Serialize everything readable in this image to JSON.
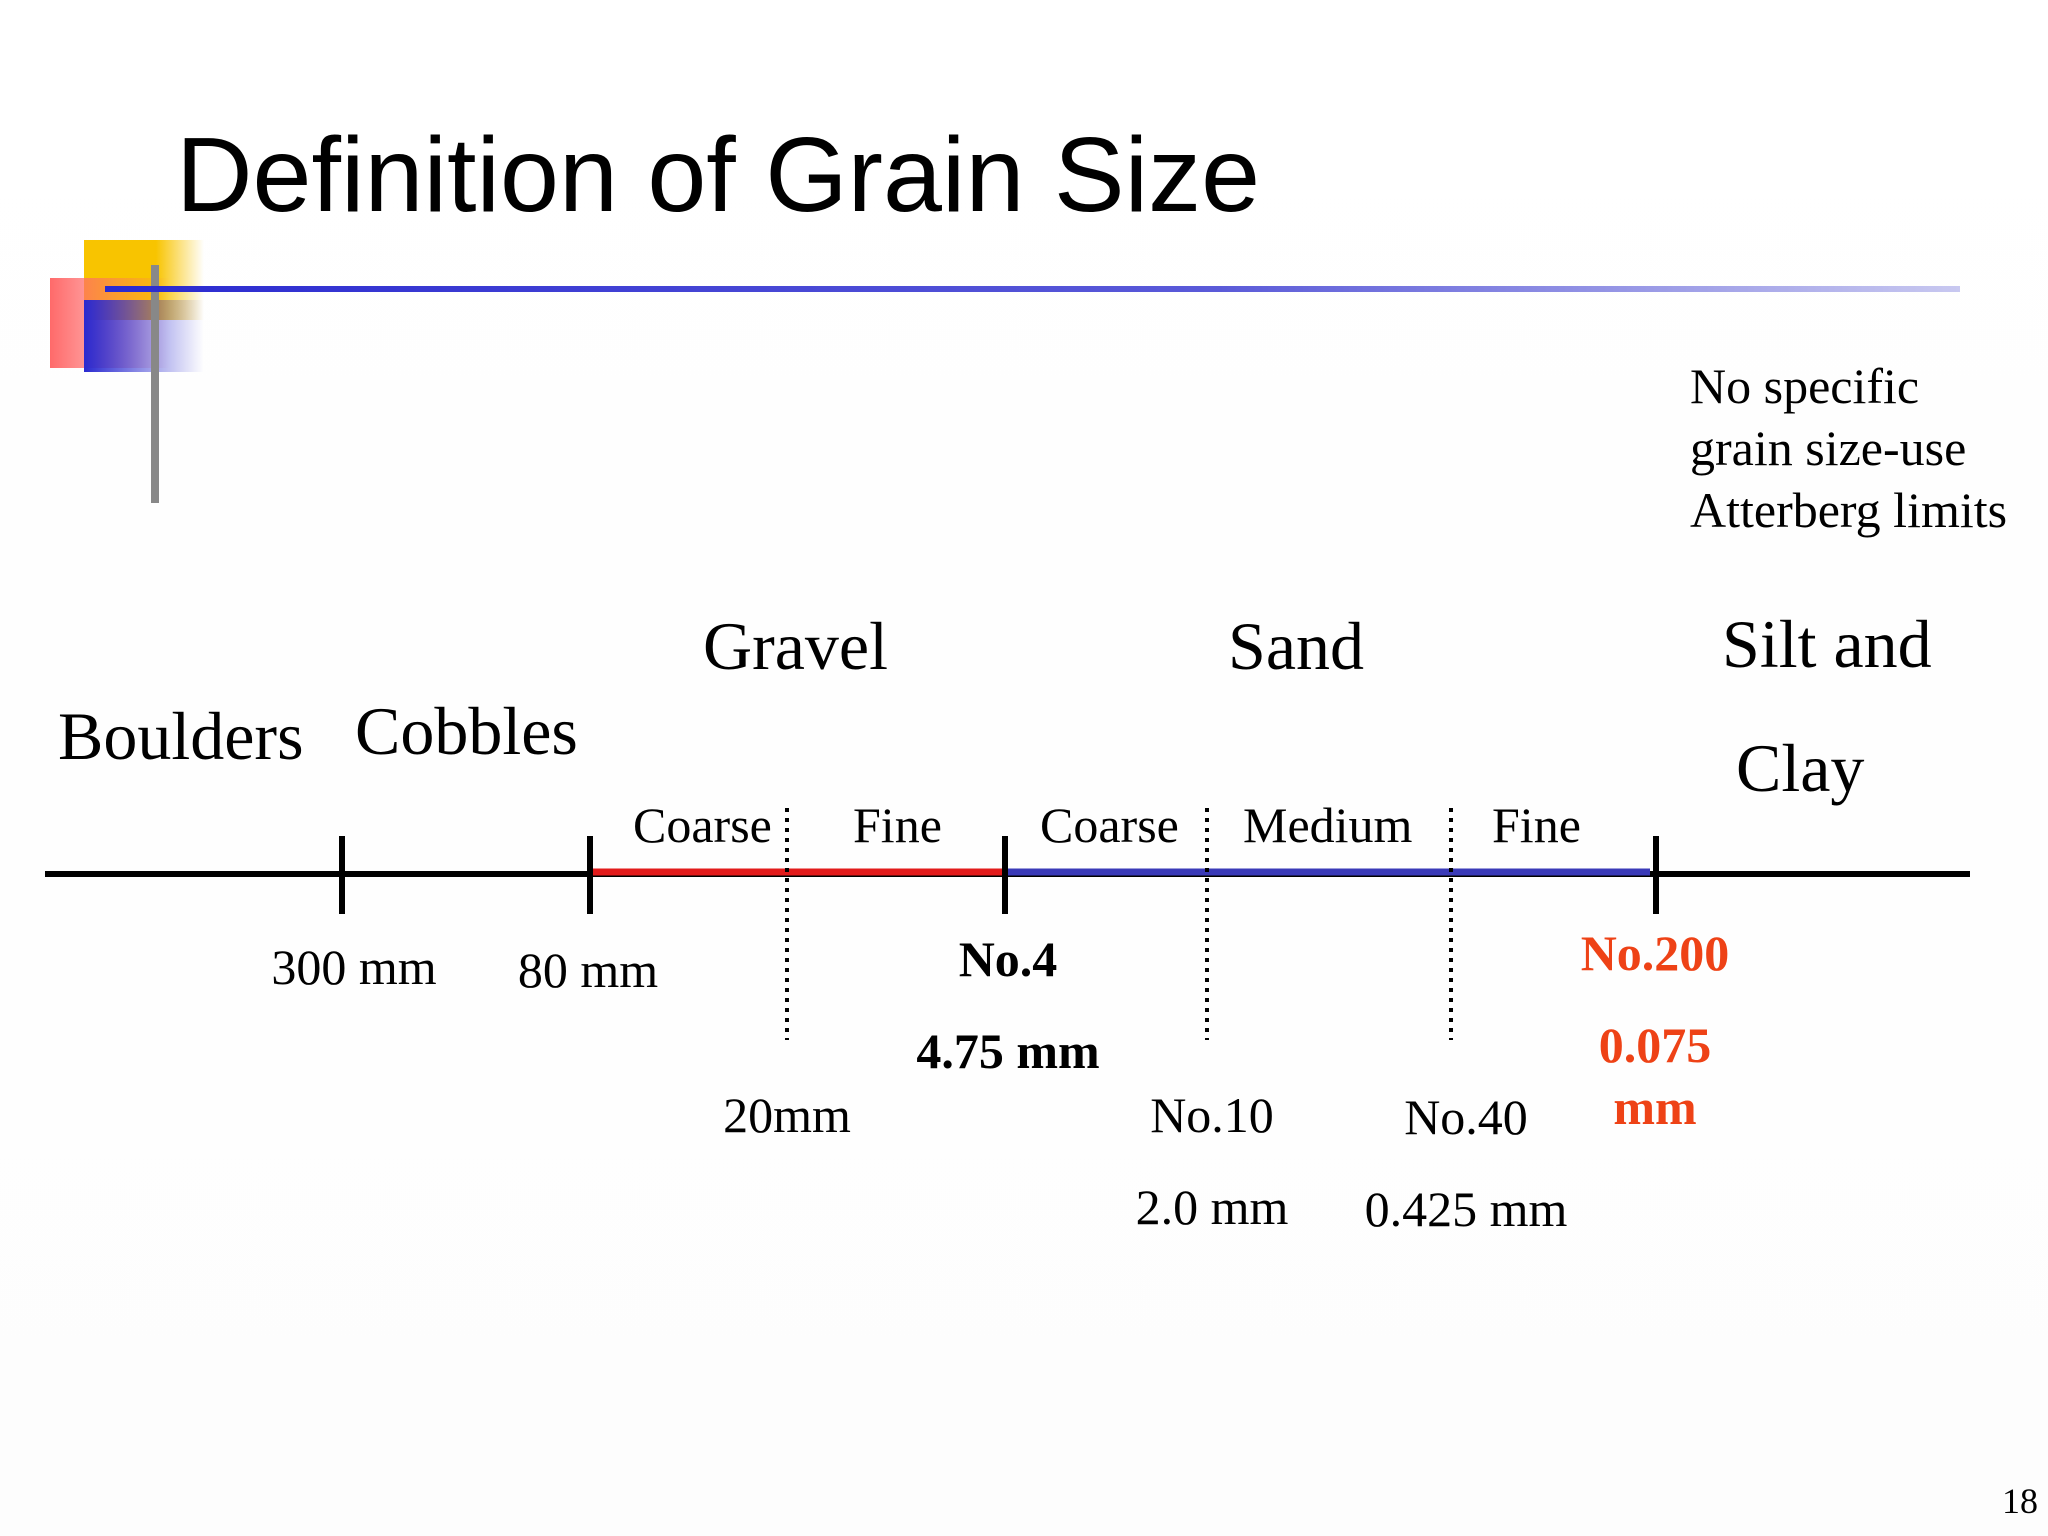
{
  "slide": {
    "title": "Definition of Grain Size",
    "note_lines": [
      "No specific",
      "grain size-use",
      "Atterberg limits"
    ],
    "page_number": "18",
    "colors": {
      "gravel": "#e21b1b",
      "sand": "#3a3ab8",
      "highlight": "#ee4216",
      "axis": "#000000",
      "accent_yellow": "#f8c400",
      "accent_blue": "#2a2ad0"
    }
  },
  "categories": {
    "boulders": "Boulders",
    "cobbles": "Cobbles",
    "gravel": "Gravel",
    "sand": "Sand",
    "silt_clay_line1": "Silt and",
    "silt_clay_line2": "Clay"
  },
  "subdivisions": {
    "gravel_coarse": "Coarse",
    "gravel_fine": "Fine",
    "sand_coarse": "Coarse",
    "sand_medium": "Medium",
    "sand_fine": "Fine"
  },
  "boundaries": {
    "b300": "300 mm",
    "b80": "80 mm",
    "b20": "20mm",
    "no4": "No.4",
    "no4_size": "4.75 mm",
    "no10": "No.10",
    "no10_size": "2.0 mm",
    "no40": "No.40",
    "no40_size": "0.425 mm",
    "no200": "No.200",
    "no200_size_line1": "0.075",
    "no200_size_line2": "mm"
  }
}
